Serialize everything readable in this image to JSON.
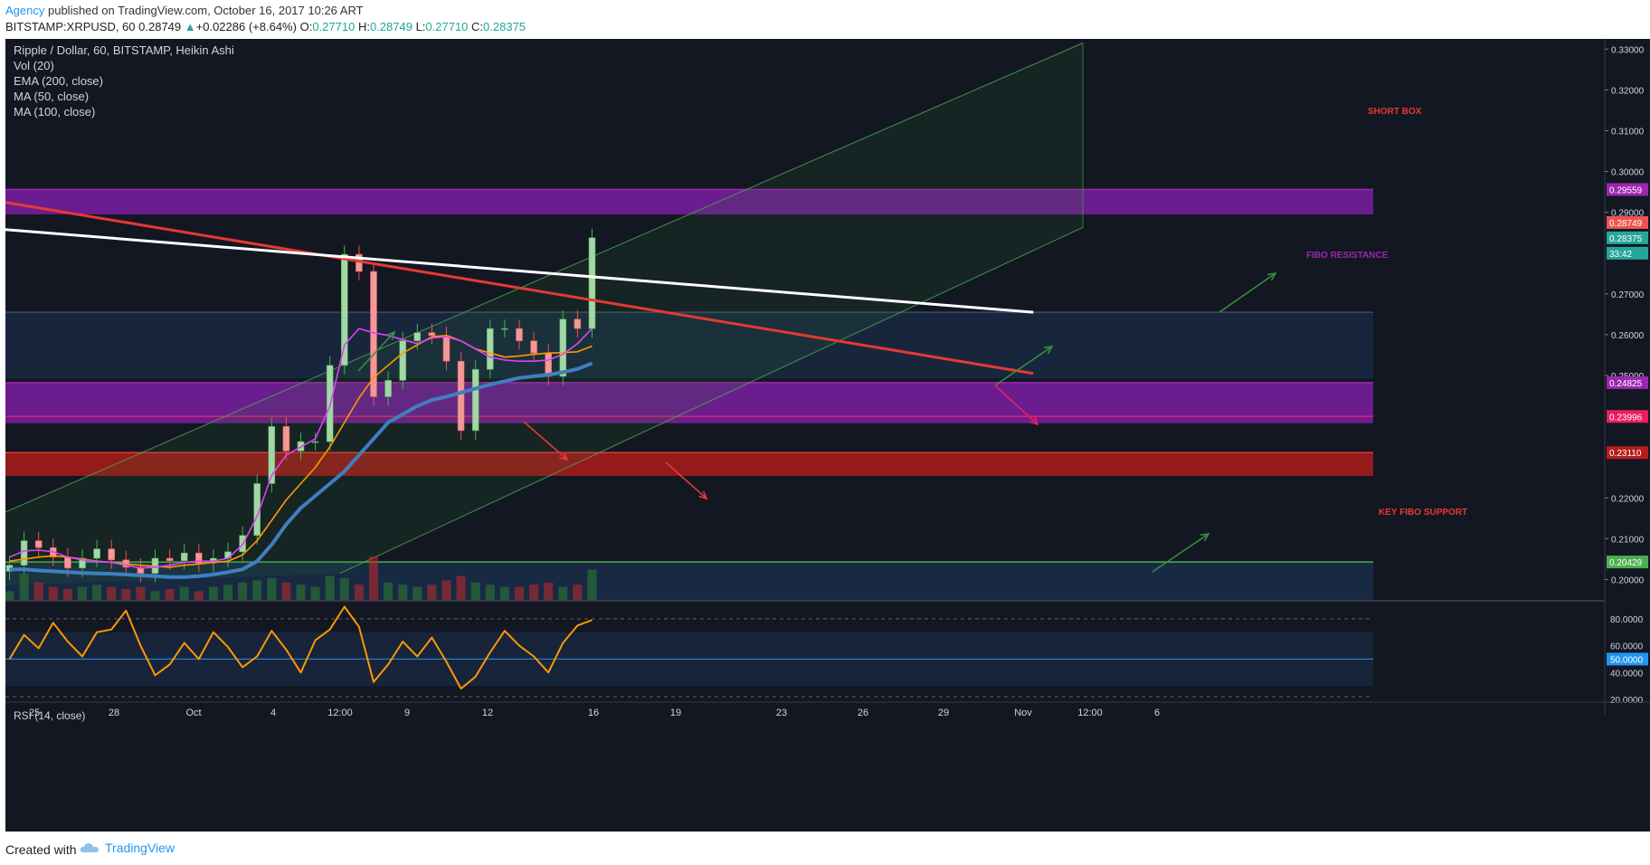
{
  "header": {
    "author": "Agency",
    "published_text": " published on TradingView.com, October 16, 2017 10:26 ART",
    "symbol_line": "BITSTAMP:XRPUSD, 60",
    "last": "0.28749",
    "change": "+0.02286 (+8.64%)",
    "open_label": "O:",
    "open": "0.27710",
    "high_label": "H:",
    "high": "0.28749",
    "low_label": "L:",
    "low": "0.27710",
    "close_label": "C:",
    "close": "0.28375"
  },
  "legend": {
    "title": "Ripple / Dollar, 60, BITSTAMP, Heikin Ashi",
    "vol": "Vol (20)",
    "ema": "EMA (200, close)",
    "ma50": "MA (50, close)",
    "ma100": "MA (100, close)"
  },
  "annotations": {
    "short_box": "SHORT BOX",
    "fibo_resistance": "FIBO RESISTANCE",
    "key_fibo_support": "KEY FIBO SUPPORT"
  },
  "rsi_legend": "RSI (14, close)",
  "footer": {
    "created_with": "Created with",
    "brand": "TradingView"
  },
  "colors": {
    "background": "#131722",
    "purple_zone": "#7b1fa2",
    "red_zone": "#b71c1c",
    "red_trendline": "#e53935",
    "white_trendline": "#ffffff",
    "channel": "#4caf50",
    "ema200": "#3f7fbf",
    "ma50": "#ff9800",
    "ma100": "#e040fb",
    "rsi": "#ff9800"
  },
  "chart_data": {
    "type": "candlestick",
    "symbol": "BITSTAMP:XRPUSD",
    "interval": "60",
    "price_axis": {
      "ylim": [
        0.195,
        0.3325
      ],
      "ticks": [
        "0.33000",
        "0.32000",
        "0.31000",
        "0.30000",
        "0.29000",
        "0.27000",
        "0.26000",
        "0.25000",
        "0.22000",
        "0.21000",
        "0.20000"
      ]
    },
    "price_badges": [
      {
        "label": "0.29559",
        "color": "#9c27b0"
      },
      {
        "label": "0.28749",
        "color": "#ef5350"
      },
      {
        "label": "0.28375",
        "color": "#26a69a"
      },
      {
        "label": "33:42",
        "color": "#26a69a"
      },
      {
        "label": "0.24825",
        "color": "#9c27b0"
      },
      {
        "label": "0.23996",
        "color": "#e91e63"
      },
      {
        "label": "0.23110",
        "color": "#b71c1c"
      },
      {
        "label": "0.20429",
        "color": "#4caf50"
      }
    ],
    "x_axis": {
      "labels": [
        "25",
        "28",
        "Oct",
        "4",
        "12:00",
        "9",
        "12",
        "16",
        "19",
        "23",
        "26",
        "29",
        "Nov",
        "12:00",
        "6"
      ]
    },
    "zones": [
      {
        "name": "fibo-resistance-zone",
        "from": 0.2895,
        "to": 0.29559
      },
      {
        "name": "fibo-support-zone",
        "from": 0.2383,
        "to": 0.24825
      },
      {
        "name": "red-support-zone",
        "from": 0.2254,
        "to": 0.2311
      },
      {
        "name": "green-bottom-zone",
        "from": 0.195,
        "to": 0.20429
      },
      {
        "name": "range-box",
        "from": 0.2493,
        "to": 0.2655
      }
    ],
    "price_series": {
      "name": "Heikin Ashi close",
      "x_days": [
        0,
        1,
        2,
        3,
        4,
        5,
        6,
        7,
        8,
        9,
        10,
        11,
        12,
        13,
        14,
        15,
        16,
        17,
        18,
        19,
        20,
        21,
        22,
        23,
        24,
        25,
        26,
        27,
        28,
        29,
        30,
        31,
        32,
        33,
        34,
        35,
        36,
        37,
        38,
        39,
        40
      ],
      "values": [
        0.2035,
        0.2095,
        0.2078,
        0.2055,
        0.2028,
        0.2052,
        0.2075,
        0.2048,
        0.203,
        0.2015,
        0.2052,
        0.2046,
        0.2065,
        0.204,
        0.2052,
        0.2068,
        0.2108,
        0.2235,
        0.2375,
        0.2315,
        0.2338,
        0.2338,
        0.2525,
        0.2797,
        0.2755,
        0.2448,
        0.2488,
        0.2585,
        0.2605,
        0.2598,
        0.2535,
        0.2365,
        0.2515,
        0.2615,
        0.2615,
        0.2585,
        0.2555,
        0.2498,
        0.2638,
        0.2615,
        0.28375
      ]
    },
    "indicators": [
      {
        "name": "EMA (200, close)",
        "values": [
          0.2025,
          0.2025,
          0.2022,
          0.202,
          0.2018,
          0.2016,
          0.2015,
          0.2014,
          0.2012,
          0.201,
          0.2008,
          0.2006,
          0.2006,
          0.2008,
          0.2012,
          0.2018,
          0.2025,
          0.2045,
          0.2085,
          0.2135,
          0.2175,
          0.2205,
          0.2235,
          0.2265,
          0.2305,
          0.2345,
          0.2385,
          0.2405,
          0.2425,
          0.244,
          0.2448,
          0.2458,
          0.2468,
          0.2478,
          0.2486,
          0.2494,
          0.2498,
          0.2502,
          0.2508,
          0.2516,
          0.253
        ]
      },
      {
        "name": "MA (50, close)",
        "values": [
          0.2045,
          0.205,
          0.2055,
          0.2058,
          0.2055,
          0.205,
          0.2045,
          0.2042,
          0.2038,
          0.2035,
          0.2032,
          0.203,
          0.2035,
          0.2038,
          0.2042,
          0.2045,
          0.206,
          0.2095,
          0.2145,
          0.2195,
          0.2235,
          0.2275,
          0.2325,
          0.2385,
          0.2445,
          0.2495,
          0.2525,
          0.2555,
          0.2575,
          0.2595,
          0.2598,
          0.2585,
          0.2565,
          0.2555,
          0.2545,
          0.2548,
          0.2552,
          0.2555,
          0.2556,
          0.2558,
          0.2572
        ]
      },
      {
        "name": "MA (100, close)",
        "values": [
          0.2055,
          0.207,
          0.2072,
          0.2068,
          0.2055,
          0.2048,
          0.2045,
          0.2042,
          0.2035,
          0.2028,
          0.203,
          0.2035,
          0.2042,
          0.2045,
          0.2045,
          0.2052,
          0.2085,
          0.2155,
          0.2255,
          0.2305,
          0.2325,
          0.2345,
          0.2425,
          0.2575,
          0.2615,
          0.2605,
          0.2598,
          0.2588,
          0.2578,
          0.2592,
          0.2595,
          0.2585,
          0.2565,
          0.2545,
          0.2538,
          0.2535,
          0.2535,
          0.2538,
          0.2552,
          0.2578,
          0.2615
        ]
      }
    ],
    "trendlines": [
      {
        "name": "red-trendline",
        "from": {
          "x_days": -0.4,
          "y": 0.2925
        },
        "to": {
          "x_days": 70.3,
          "y": 0.2505
        }
      },
      {
        "name": "white-trendline",
        "from": {
          "x_days": -0.4,
          "y": 0.2858
        },
        "to": {
          "x_days": 70.3,
          "y": 0.2655
        }
      }
    ],
    "rsi": {
      "name": "RSI (14, close)",
      "ylim": [
        18,
        92
      ],
      "ticks": [
        "80.0000",
        "60.0000",
        "40.0000",
        "20.0000"
      ],
      "badge": "50.0000",
      "values": [
        50,
        68,
        58,
        77,
        63,
        52,
        70,
        72,
        86,
        60,
        38,
        46,
        62,
        50,
        70,
        59,
        44,
        52,
        71,
        57,
        40,
        64,
        72,
        89,
        74,
        33,
        46,
        63,
        52,
        66,
        48,
        28,
        37,
        55,
        71,
        60,
        52,
        40,
        62,
        75,
        79
      ]
    },
    "volume": {
      "name": "Vol (20)",
      "values": [
        0.2,
        0.6,
        0.4,
        0.3,
        0.25,
        0.3,
        0.35,
        0.3,
        0.25,
        0.3,
        0.2,
        0.25,
        0.3,
        0.2,
        0.3,
        0.35,
        0.4,
        0.45,
        0.5,
        0.4,
        0.35,
        0.3,
        0.55,
        0.5,
        0.35,
        1.0,
        0.4,
        0.35,
        0.3,
        0.35,
        0.45,
        0.55,
        0.4,
        0.35,
        0.3,
        0.3,
        0.35,
        0.4,
        0.3,
        0.35,
        0.7
      ]
    }
  }
}
